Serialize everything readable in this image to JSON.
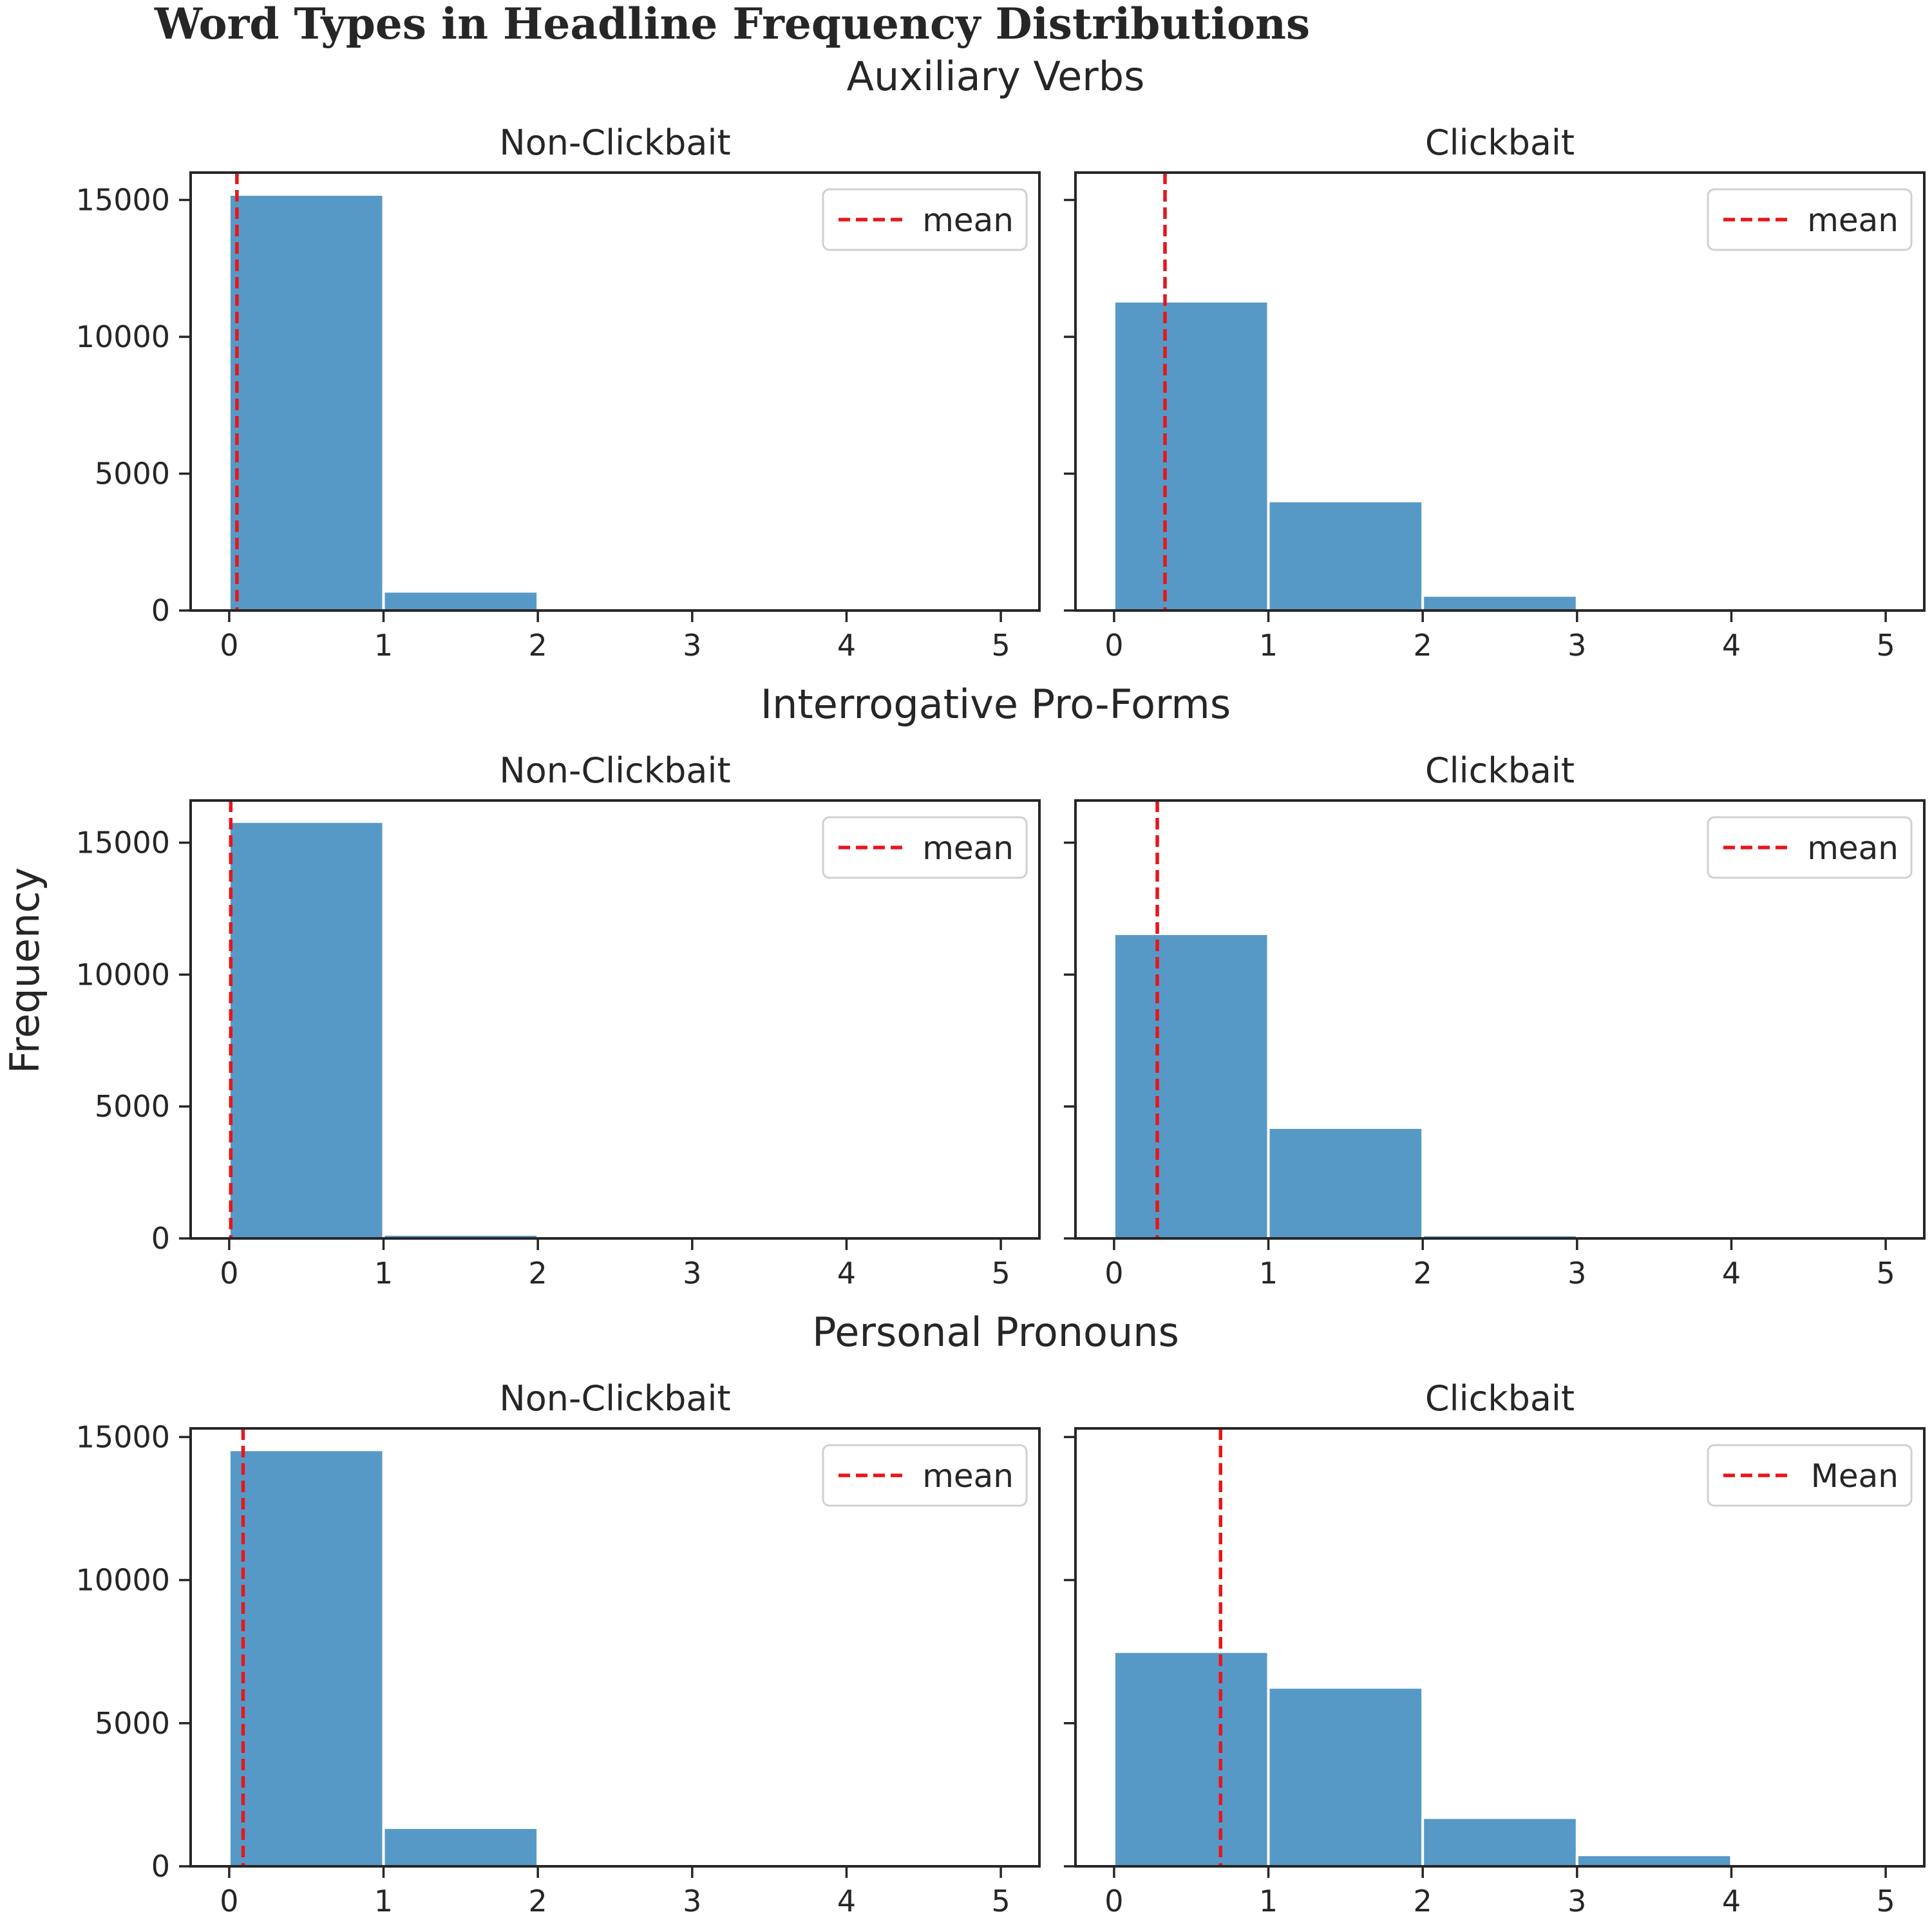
{
  "title": "Word Types in Headline Frequency Distributions",
  "ylabel": "Frequency",
  "colors": {
    "bar": "#5799c6",
    "mean_line": "#e8161b",
    "text": "#262626"
  },
  "chart_data": [
    {
      "type": "bar",
      "row_title": "Auxiliary Verbs",
      "title": "Non-Clickbait",
      "bin_edges": [
        0,
        1,
        2,
        3,
        4,
        5
      ],
      "values": [
        15200,
        700,
        0,
        0,
        0
      ],
      "mean": 0.05,
      "legend": "mean",
      "xlim": [
        -0.25,
        5.25
      ],
      "ylim": [
        0,
        16000
      ],
      "xticks": [
        "0",
        "1",
        "2",
        "3",
        "4",
        "5"
      ],
      "yticks": [
        "0",
        "5000",
        "10000",
        "15000"
      ],
      "legend_position": "top-right"
    },
    {
      "type": "bar",
      "row_title": "Auxiliary Verbs",
      "title": "Clickbait",
      "bin_edges": [
        0,
        1,
        2,
        3,
        4,
        5
      ],
      "values": [
        11300,
        4000,
        550,
        0,
        0
      ],
      "mean": 0.33,
      "legend": "mean",
      "xlim": [
        -0.25,
        5.25
      ],
      "ylim": [
        0,
        16000
      ],
      "xticks": [
        "0",
        "1",
        "2",
        "3",
        "4",
        "5"
      ],
      "yticks": [],
      "legend_position": "top-right"
    },
    {
      "type": "bar",
      "row_title": "Interrogative Pro-Forms",
      "title": "Non-Clickbait",
      "bin_edges": [
        0,
        1,
        2,
        3,
        4,
        5
      ],
      "values": [
        15800,
        150,
        0,
        0,
        0
      ],
      "mean": 0.01,
      "legend": "mean",
      "xlim": [
        -0.25,
        5.25
      ],
      "ylim": [
        0,
        16600
      ],
      "xticks": [
        "0",
        "1",
        "2",
        "3",
        "4",
        "5"
      ],
      "yticks": [
        "0",
        "5000",
        "10000",
        "15000"
      ],
      "legend_position": "top-right"
    },
    {
      "type": "bar",
      "row_title": "Interrogative Pro-Forms",
      "title": "Clickbait",
      "bin_edges": [
        0,
        1,
        2,
        3,
        4,
        5
      ],
      "values": [
        11550,
        4200,
        130,
        0,
        0
      ],
      "mean": 0.28,
      "legend": "mean",
      "xlim": [
        -0.25,
        5.25
      ],
      "ylim": [
        0,
        16600
      ],
      "xticks": [
        "0",
        "1",
        "2",
        "3",
        "4",
        "5"
      ],
      "yticks": [],
      "legend_position": "top-right"
    },
    {
      "type": "bar",
      "row_title": "Personal Pronouns",
      "title": "Non-Clickbait",
      "bin_edges": [
        0,
        1,
        2,
        3,
        4,
        5
      ],
      "values": [
        14550,
        1350,
        0,
        0,
        0
      ],
      "mean": 0.09,
      "legend": "mean",
      "xlim": [
        -0.25,
        5.25
      ],
      "ylim": [
        0,
        15300
      ],
      "xticks": [
        "0",
        "1",
        "2",
        "3",
        "4",
        "5"
      ],
      "yticks": [
        "0",
        "5000",
        "10000",
        "15000"
      ],
      "legend_position": "top-right"
    },
    {
      "type": "bar",
      "row_title": "Personal Pronouns",
      "title": "Clickbait",
      "bin_edges": [
        0,
        1,
        2,
        3,
        4,
        5
      ],
      "values": [
        7500,
        6250,
        1700,
        400,
        0
      ],
      "mean": 0.69,
      "legend": "Mean",
      "xlim": [
        -0.25,
        5.25
      ],
      "ylim": [
        0,
        15300
      ],
      "xticks": [
        "0",
        "1",
        "2",
        "3",
        "4",
        "5"
      ],
      "yticks": [],
      "legend_position": "top-right"
    }
  ]
}
